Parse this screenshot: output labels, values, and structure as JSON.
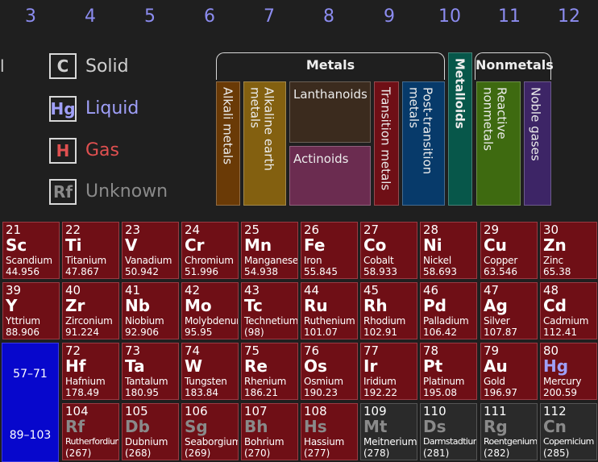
{
  "group_numbers": [
    "3",
    "4",
    "5",
    "6",
    "7",
    "8",
    "9",
    "10",
    "11",
    "12"
  ],
  "edge_text": "l",
  "legend": [
    {
      "symbol": "C",
      "label": "Solid",
      "color": "#cfcfcf"
    },
    {
      "symbol": "Hg",
      "label": "Liquid",
      "color": "#9f9ff8"
    },
    {
      "symbol": "H",
      "label": "Gas",
      "color": "#e05050"
    },
    {
      "symbol": "Rf",
      "label": "Unknown",
      "color": "#8a8a8a"
    }
  ],
  "categories": {
    "metals_title": "Metals",
    "nonmetals_title": "Nonmetals",
    "alkali": "Alkali metals",
    "alkaline_earth": "Alkaline earth metals",
    "lanthanoids": "Lanthanoids",
    "actinoids": "Actinoids",
    "transition": "Transition metals",
    "post_transition": "Post-transition metals",
    "metalloids": "Metalloids",
    "reactive_nonmetals": "Reactive nonmetals",
    "noble_gases": "Noble gases",
    "colors": {
      "alkali": "#6a3a06",
      "alkaline_earth": "#836010",
      "lanthanoids": "#3b2b1e",
      "actinoids": "#6b2c50",
      "transition": "#6f0f16",
      "post_transition": "#073a6a",
      "metalloids": "#07574a",
      "reactive_nonmetals": "#3e6a10",
      "noble_gases": "#3d2566"
    }
  },
  "fblock": {
    "lanthanides": "57–71",
    "actinides": "89–103",
    "color": "#0707cc"
  },
  "rows": [
    [
      {
        "num": "21",
        "sym": "Sc",
        "name": "Scandium",
        "mass": "44.956",
        "state": "solid"
      },
      {
        "num": "22",
        "sym": "Ti",
        "name": "Titanium",
        "mass": "47.867",
        "state": "solid"
      },
      {
        "num": "23",
        "sym": "V",
        "name": "Vanadium",
        "mass": "50.942",
        "state": "solid"
      },
      {
        "num": "24",
        "sym": "Cr",
        "name": "Chromium",
        "mass": "51.996",
        "state": "solid"
      },
      {
        "num": "25",
        "sym": "Mn",
        "name": "Manganese",
        "mass": "54.938",
        "state": "solid"
      },
      {
        "num": "26",
        "sym": "Fe",
        "name": "Iron",
        "mass": "55.845",
        "state": "solid"
      },
      {
        "num": "27",
        "sym": "Co",
        "name": "Cobalt",
        "mass": "58.933",
        "state": "solid"
      },
      {
        "num": "28",
        "sym": "Ni",
        "name": "Nickel",
        "mass": "58.693",
        "state": "solid"
      },
      {
        "num": "29",
        "sym": "Cu",
        "name": "Copper",
        "mass": "63.546",
        "state": "solid"
      },
      {
        "num": "30",
        "sym": "Zn",
        "name": "Zinc",
        "mass": "65.38",
        "state": "solid"
      }
    ],
    [
      {
        "num": "39",
        "sym": "Y",
        "name": "Yttrium",
        "mass": "88.906",
        "state": "solid"
      },
      {
        "num": "40",
        "sym": "Zr",
        "name": "Zirconium",
        "mass": "91.224",
        "state": "solid"
      },
      {
        "num": "41",
        "sym": "Nb",
        "name": "Niobium",
        "mass": "92.906",
        "state": "solid"
      },
      {
        "num": "42",
        "sym": "Mo",
        "name": "Molybdenum",
        "mass": "95.95",
        "state": "solid"
      },
      {
        "num": "43",
        "sym": "Tc",
        "name": "Technetium",
        "mass": "(98)",
        "state": "solid"
      },
      {
        "num": "44",
        "sym": "Ru",
        "name": "Ruthenium",
        "mass": "101.07",
        "state": "solid"
      },
      {
        "num": "45",
        "sym": "Rh",
        "name": "Rhodium",
        "mass": "102.91",
        "state": "solid"
      },
      {
        "num": "46",
        "sym": "Pd",
        "name": "Palladium",
        "mass": "106.42",
        "state": "solid"
      },
      {
        "num": "47",
        "sym": "Ag",
        "name": "Silver",
        "mass": "107.87",
        "state": "solid"
      },
      {
        "num": "48",
        "sym": "Cd",
        "name": "Cadmium",
        "mass": "112.41",
        "state": "solid"
      }
    ],
    [
      null,
      {
        "num": "72",
        "sym": "Hf",
        "name": "Hafnium",
        "mass": "178.49",
        "state": "solid"
      },
      {
        "num": "73",
        "sym": "Ta",
        "name": "Tantalum",
        "mass": "180.95",
        "state": "solid"
      },
      {
        "num": "74",
        "sym": "W",
        "name": "Tungsten",
        "mass": "183.84",
        "state": "solid"
      },
      {
        "num": "75",
        "sym": "Re",
        "name": "Rhenium",
        "mass": "186.21",
        "state": "solid"
      },
      {
        "num": "76",
        "sym": "Os",
        "name": "Osmium",
        "mass": "190.23",
        "state": "solid"
      },
      {
        "num": "77",
        "sym": "Ir",
        "name": "Iridium",
        "mass": "192.22",
        "state": "solid"
      },
      {
        "num": "78",
        "sym": "Pt",
        "name": "Platinum",
        "mass": "195.08",
        "state": "solid"
      },
      {
        "num": "79",
        "sym": "Au",
        "name": "Gold",
        "mass": "196.97",
        "state": "solid"
      },
      {
        "num": "80",
        "sym": "Hg",
        "name": "Mercury",
        "mass": "200.59",
        "state": "liquid"
      }
    ],
    [
      null,
      {
        "num": "104",
        "sym": "Rf",
        "name": "Rutherfordium",
        "mass": "(267)",
        "state": "unknown"
      },
      {
        "num": "105",
        "sym": "Db",
        "name": "Dubnium",
        "mass": "(268)",
        "state": "unknown"
      },
      {
        "num": "106",
        "sym": "Sg",
        "name": "Seaborgium",
        "mass": "(269)",
        "state": "unknown"
      },
      {
        "num": "107",
        "sym": "Bh",
        "name": "Bohrium",
        "mass": "(270)",
        "state": "unknown"
      },
      {
        "num": "108",
        "sym": "Hs",
        "name": "Hassium",
        "mass": "(277)",
        "state": "unknown"
      },
      {
        "num": "109",
        "sym": "Mt",
        "name": "Meitnerium",
        "mass": "(278)",
        "state": "unknown",
        "cat": "unk"
      },
      {
        "num": "110",
        "sym": "Ds",
        "name": "Darmstadtium",
        "mass": "(281)",
        "state": "unknown",
        "cat": "unk"
      },
      {
        "num": "111",
        "sym": "Rg",
        "name": "Roentgenium",
        "mass": "(282)",
        "state": "unknown",
        "cat": "unk"
      },
      {
        "num": "112",
        "sym": "Cn",
        "name": "Copernicium",
        "mass": "(285)",
        "state": "unknown",
        "cat": "unk"
      }
    ]
  ]
}
